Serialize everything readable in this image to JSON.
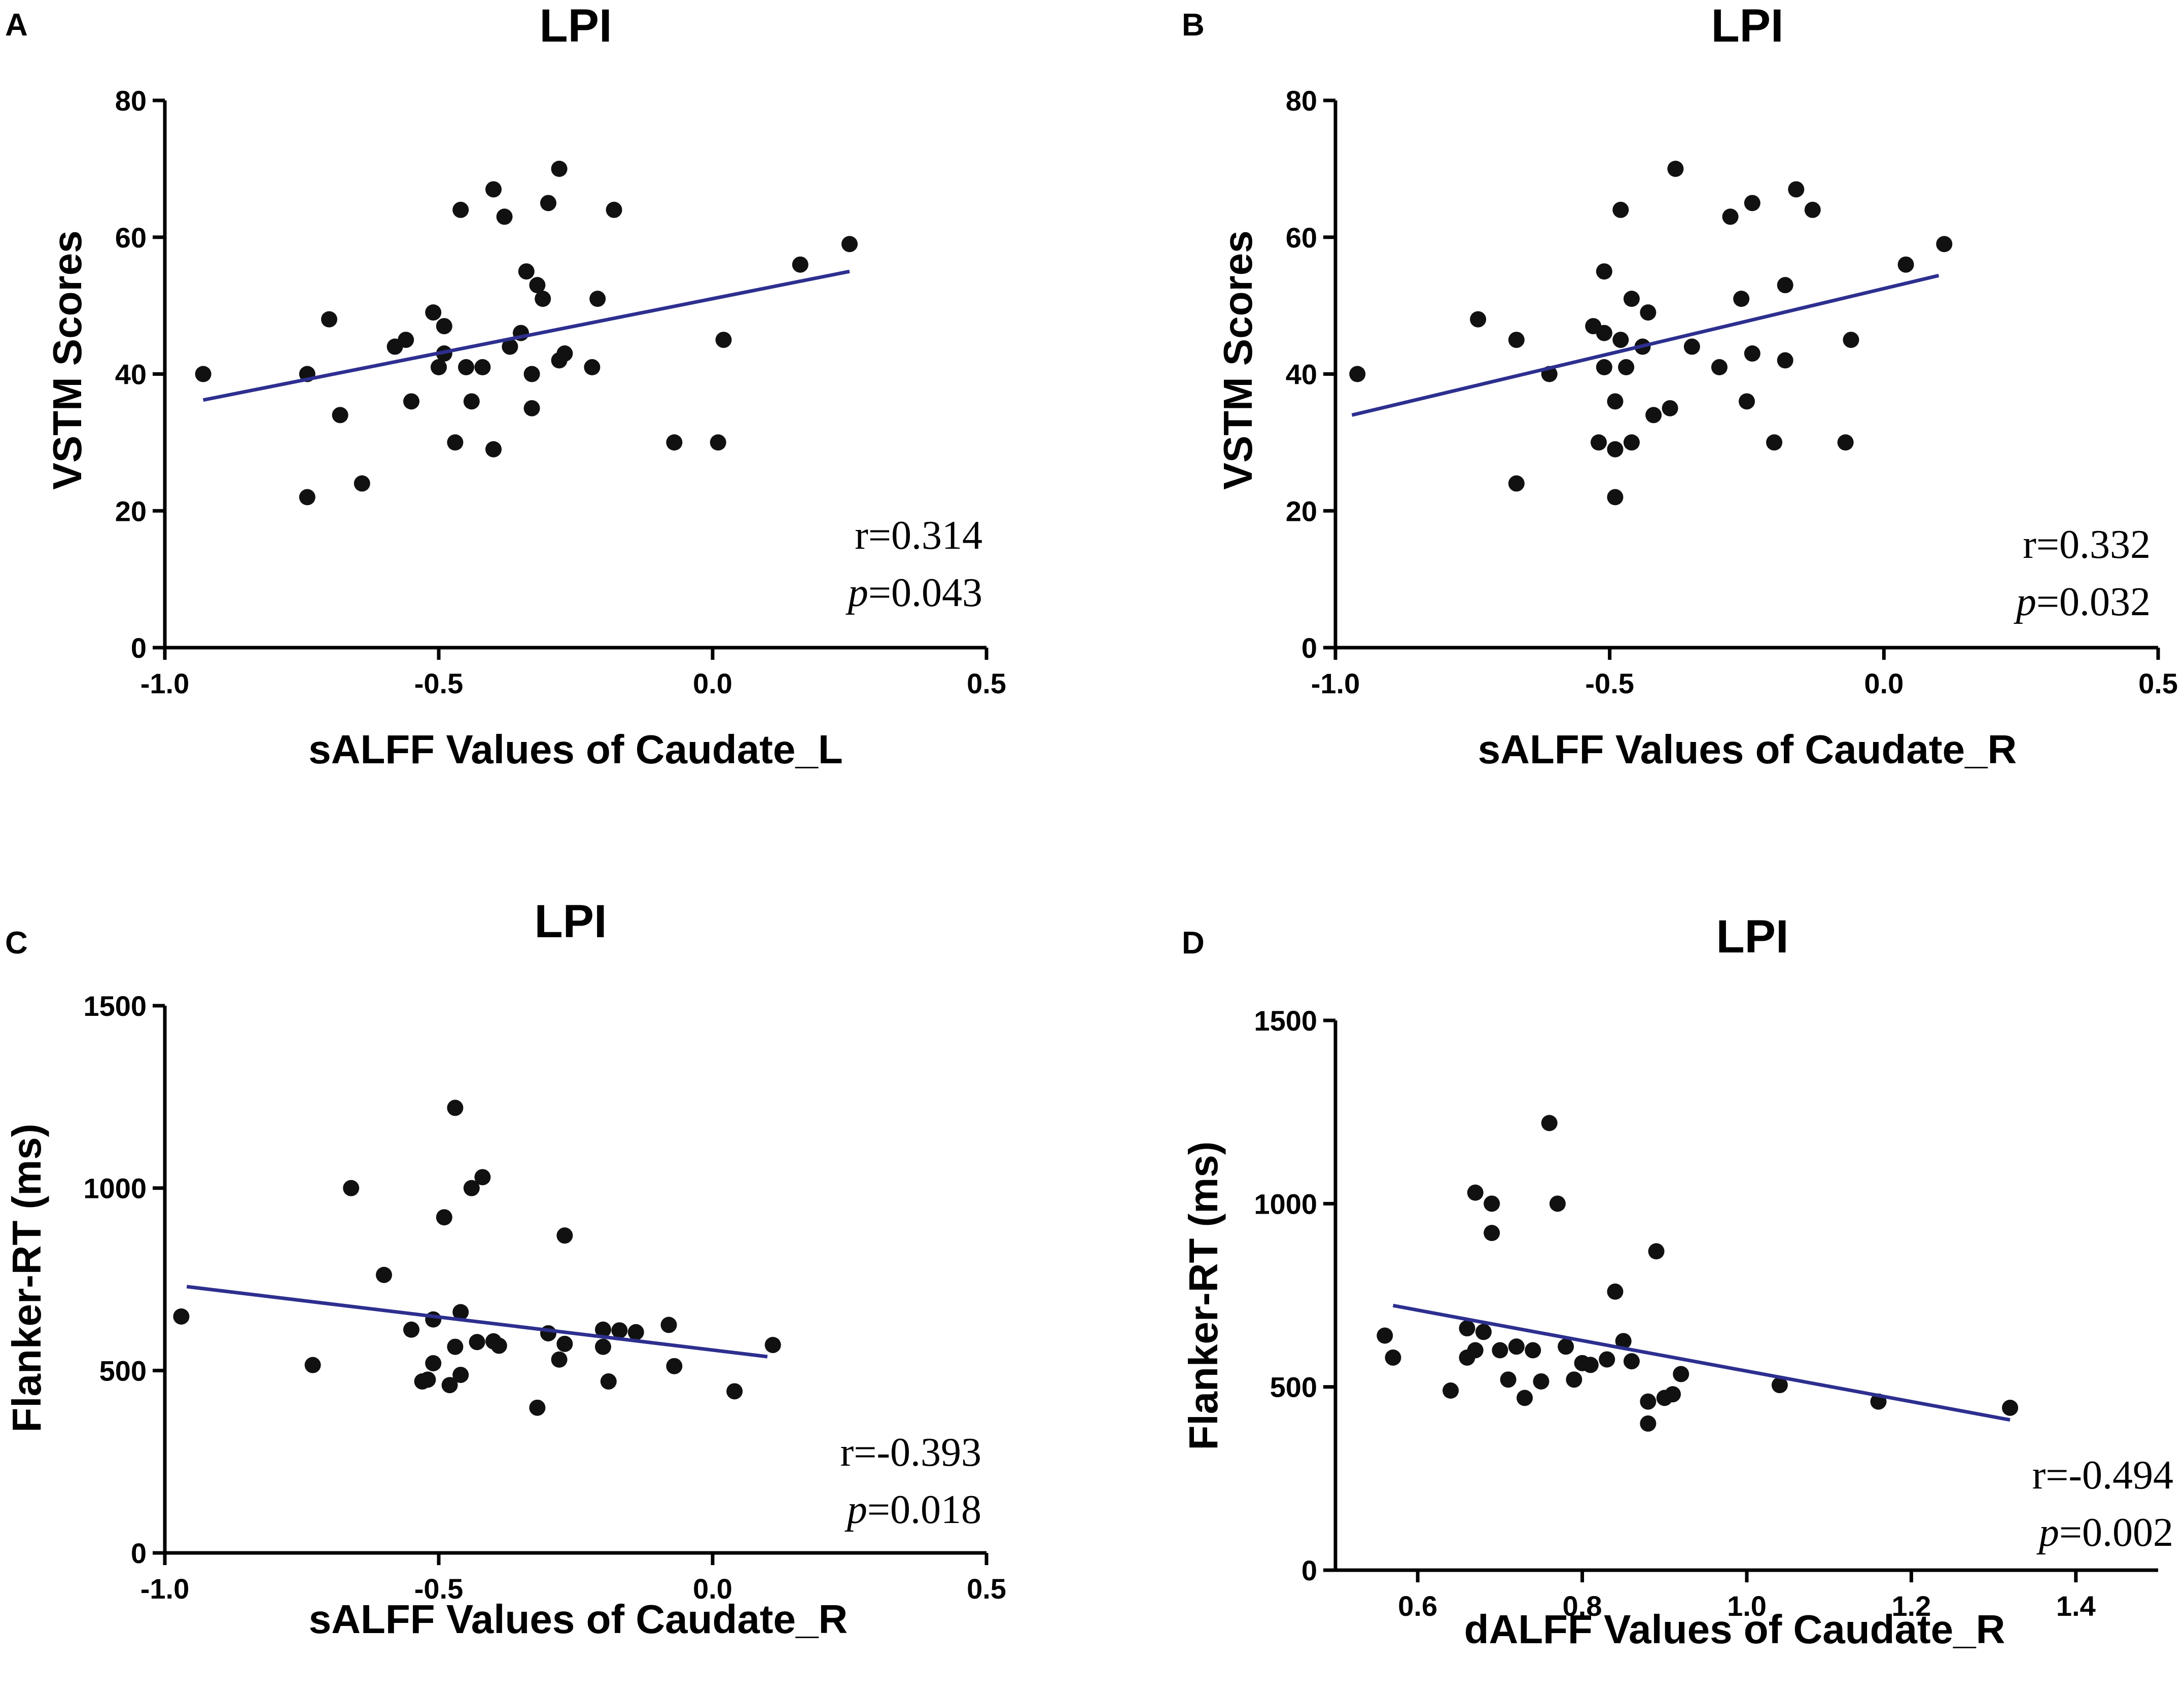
{
  "chart_data": [
    {
      "panel_label": "A",
      "type": "scatter",
      "title": "LPI",
      "xlabel": "sALFF Values of Caudate_L",
      "ylabel": "VSTM Scores",
      "xlim": [
        -1.0,
        0.5
      ],
      "ylim": [
        0,
        80
      ],
      "xticks": [
        -1.0,
        -0.5,
        0.0,
        0.5
      ],
      "xtick_labels": [
        "-1.0",
        "-0.5",
        "0.0",
        "0.5"
      ],
      "yticks": [
        0,
        20,
        40,
        60,
        80
      ],
      "ytick_labels": [
        "0",
        "20",
        "40",
        "60",
        "80"
      ],
      "fit_line": {
        "x": [
          -0.93,
          0.25
        ],
        "y": [
          36.2,
          55.0
        ]
      },
      "stats": {
        "r_text": "r=0.314",
        "p_symbol": "p",
        "p_value_text": "=0.043"
      },
      "points": [
        {
          "x": -0.93,
          "y": 40
        },
        {
          "x": -0.74,
          "y": 22
        },
        {
          "x": -0.74,
          "y": 40
        },
        {
          "x": -0.7,
          "y": 48
        },
        {
          "x": -0.68,
          "y": 34
        },
        {
          "x": -0.64,
          "y": 24
        },
        {
          "x": -0.58,
          "y": 44
        },
        {
          "x": -0.56,
          "y": 45
        },
        {
          "x": -0.55,
          "y": 36
        },
        {
          "x": -0.51,
          "y": 49
        },
        {
          "x": -0.5,
          "y": 41
        },
        {
          "x": -0.49,
          "y": 47
        },
        {
          "x": -0.49,
          "y": 43
        },
        {
          "x": -0.47,
          "y": 30
        },
        {
          "x": -0.46,
          "y": 64
        },
        {
          "x": -0.45,
          "y": 41
        },
        {
          "x": -0.44,
          "y": 36
        },
        {
          "x": -0.42,
          "y": 41
        },
        {
          "x": -0.4,
          "y": 67
        },
        {
          "x": -0.4,
          "y": 29
        },
        {
          "x": -0.38,
          "y": 63
        },
        {
          "x": -0.37,
          "y": 44
        },
        {
          "x": -0.35,
          "y": 46
        },
        {
          "x": -0.34,
          "y": 55
        },
        {
          "x": -0.33,
          "y": 40
        },
        {
          "x": -0.33,
          "y": 35
        },
        {
          "x": -0.32,
          "y": 53
        },
        {
          "x": -0.31,
          "y": 51
        },
        {
          "x": -0.3,
          "y": 65
        },
        {
          "x": -0.28,
          "y": 70
        },
        {
          "x": -0.28,
          "y": 42
        },
        {
          "x": -0.27,
          "y": 43
        },
        {
          "x": -0.22,
          "y": 41
        },
        {
          "x": -0.21,
          "y": 51
        },
        {
          "x": -0.18,
          "y": 64
        },
        {
          "x": -0.07,
          "y": 30
        },
        {
          "x": 0.01,
          "y": 30
        },
        {
          "x": 0.02,
          "y": 45
        },
        {
          "x": 0.16,
          "y": 56
        },
        {
          "x": 0.25,
          "y": 59
        }
      ]
    },
    {
      "panel_label": "B",
      "type": "scatter",
      "title": "LPI",
      "xlabel": "sALFF Values of Caudate_R",
      "ylabel": "VSTM Scores",
      "xlim": [
        -1.0,
        0.5
      ],
      "ylim": [
        0,
        80
      ],
      "xticks": [
        -1.0,
        -0.5,
        0.0,
        0.5
      ],
      "xtick_labels": [
        "-1.0",
        "-0.5",
        "0.0",
        "0.5"
      ],
      "yticks": [
        0,
        20,
        40,
        60,
        80
      ],
      "ytick_labels": [
        "0",
        "20",
        "40",
        "60",
        "80"
      ],
      "fit_line": {
        "x": [
          -0.97,
          0.1
        ],
        "y": [
          34.0,
          54.4
        ]
      },
      "stats": {
        "r_text": "r=0.332",
        "p_symbol": "p",
        "p_value_text": "=0.032"
      },
      "points": [
        {
          "x": -0.96,
          "y": 40
        },
        {
          "x": -0.74,
          "y": 48
        },
        {
          "x": -0.67,
          "y": 45
        },
        {
          "x": -0.67,
          "y": 24
        },
        {
          "x": -0.61,
          "y": 40
        },
        {
          "x": -0.53,
          "y": 47
        },
        {
          "x": -0.52,
          "y": 30
        },
        {
          "x": -0.51,
          "y": 55
        },
        {
          "x": -0.51,
          "y": 46
        },
        {
          "x": -0.51,
          "y": 41
        },
        {
          "x": -0.49,
          "y": 22
        },
        {
          "x": -0.49,
          "y": 29
        },
        {
          "x": -0.49,
          "y": 36
        },
        {
          "x": -0.48,
          "y": 64
        },
        {
          "x": -0.48,
          "y": 45
        },
        {
          "x": -0.47,
          "y": 41
        },
        {
          "x": -0.46,
          "y": 51
        },
        {
          "x": -0.46,
          "y": 30
        },
        {
          "x": -0.44,
          "y": 44
        },
        {
          "x": -0.43,
          "y": 49
        },
        {
          "x": -0.42,
          "y": 34
        },
        {
          "x": -0.39,
          "y": 35
        },
        {
          "x": -0.38,
          "y": 70
        },
        {
          "x": -0.35,
          "y": 44
        },
        {
          "x": -0.3,
          "y": 41
        },
        {
          "x": -0.28,
          "y": 63
        },
        {
          "x": -0.26,
          "y": 51
        },
        {
          "x": -0.25,
          "y": 36
        },
        {
          "x": -0.24,
          "y": 65
        },
        {
          "x": -0.24,
          "y": 43
        },
        {
          "x": -0.2,
          "y": 30
        },
        {
          "x": -0.18,
          "y": 53
        },
        {
          "x": -0.18,
          "y": 42
        },
        {
          "x": -0.16,
          "y": 67
        },
        {
          "x": -0.13,
          "y": 64
        },
        {
          "x": -0.07,
          "y": 30
        },
        {
          "x": -0.06,
          "y": 45
        },
        {
          "x": 0.04,
          "y": 56
        },
        {
          "x": 0.11,
          "y": 59
        }
      ]
    },
    {
      "panel_label": "C",
      "type": "scatter",
      "title": "LPI",
      "xlabel": "sALFF Values of Caudate_R",
      "ylabel": "Flanker-RT (ms)",
      "xlim": [
        -1.0,
        0.5
      ],
      "ylim": [
        0,
        1500
      ],
      "xticks": [
        -1.0,
        -0.5,
        0.0,
        0.5
      ],
      "xtick_labels": [
        "-1.0",
        "-0.5",
        "0.0",
        "0.5"
      ],
      "yticks": [
        0,
        500,
        1000,
        1500
      ],
      "ytick_labels": [
        "0",
        "500",
        "1000",
        "1500"
      ],
      "fit_line": {
        "x": [
          -0.96,
          0.1
        ],
        "y": [
          730,
          538
        ]
      },
      "stats": {
        "r_text": "r=-0.393",
        "p_symbol": "p",
        "p_value_text": "=0.018"
      },
      "points": [
        {
          "x": -0.97,
          "y": 648
        },
        {
          "x": -0.73,
          "y": 515
        },
        {
          "x": -0.66,
          "y": 1000
        },
        {
          "x": -0.6,
          "y": 762
        },
        {
          "x": -0.55,
          "y": 612
        },
        {
          "x": -0.53,
          "y": 470
        },
        {
          "x": -0.52,
          "y": 475
        },
        {
          "x": -0.51,
          "y": 520
        },
        {
          "x": -0.51,
          "y": 640
        },
        {
          "x": -0.49,
          "y": 920
        },
        {
          "x": -0.48,
          "y": 460
        },
        {
          "x": -0.47,
          "y": 1220
        },
        {
          "x": -0.47,
          "y": 565
        },
        {
          "x": -0.46,
          "y": 488
        },
        {
          "x": -0.46,
          "y": 660
        },
        {
          "x": -0.44,
          "y": 1000
        },
        {
          "x": -0.43,
          "y": 578
        },
        {
          "x": -0.42,
          "y": 1030
        },
        {
          "x": -0.4,
          "y": 580
        },
        {
          "x": -0.39,
          "y": 568
        },
        {
          "x": -0.32,
          "y": 398
        },
        {
          "x": -0.3,
          "y": 602
        },
        {
          "x": -0.28,
          "y": 530
        },
        {
          "x": -0.27,
          "y": 573
        },
        {
          "x": -0.27,
          "y": 870
        },
        {
          "x": -0.2,
          "y": 565
        },
        {
          "x": -0.2,
          "y": 612
        },
        {
          "x": -0.19,
          "y": 470
        },
        {
          "x": -0.17,
          "y": 610
        },
        {
          "x": -0.14,
          "y": 605
        },
        {
          "x": -0.08,
          "y": 625
        },
        {
          "x": -0.07,
          "y": 512
        },
        {
          "x": 0.04,
          "y": 443
        },
        {
          "x": 0.11,
          "y": 570
        }
      ]
    },
    {
      "panel_label": "D",
      "type": "scatter",
      "title": "LPI",
      "xlabel": "dALFF Values of Caudate_R",
      "ylabel": "Flanker-RT (ms)",
      "xlim": [
        0.5,
        1.5
      ],
      "ylim": [
        0,
        1500
      ],
      "xticks": [
        0.6,
        0.8,
        1.0,
        1.2,
        1.4
      ],
      "xtick_labels": [
        "0.6",
        "0.8",
        "1.0",
        "1.2",
        "1.4"
      ],
      "yticks": [
        0,
        500,
        1000,
        1500
      ],
      "ytick_labels": [
        "0",
        "500",
        "1000",
        "1500"
      ],
      "fit_line": {
        "x": [
          0.57,
          1.32
        ],
        "y": [
          722,
          410
        ]
      },
      "stats": {
        "r_text": "r=-0.494",
        "p_symbol": "p",
        "p_value_text": "=0.002"
      },
      "points": [
        {
          "x": 0.56,
          "y": 640
        },
        {
          "x": 0.57,
          "y": 580
        },
        {
          "x": 0.64,
          "y": 490
        },
        {
          "x": 0.66,
          "y": 660
        },
        {
          "x": 0.66,
          "y": 580
        },
        {
          "x": 0.67,
          "y": 1030
        },
        {
          "x": 0.67,
          "y": 600
        },
        {
          "x": 0.68,
          "y": 650
        },
        {
          "x": 0.69,
          "y": 1000
        },
        {
          "x": 0.69,
          "y": 920
        },
        {
          "x": 0.7,
          "y": 600
        },
        {
          "x": 0.71,
          "y": 520
        },
        {
          "x": 0.72,
          "y": 610
        },
        {
          "x": 0.73,
          "y": 470
        },
        {
          "x": 0.74,
          "y": 600
        },
        {
          "x": 0.75,
          "y": 515
        },
        {
          "x": 0.76,
          "y": 1220
        },
        {
          "x": 0.77,
          "y": 1000
        },
        {
          "x": 0.78,
          "y": 610
        },
        {
          "x": 0.79,
          "y": 520
        },
        {
          "x": 0.8,
          "y": 565
        },
        {
          "x": 0.81,
          "y": 560
        },
        {
          "x": 0.83,
          "y": 575
        },
        {
          "x": 0.84,
          "y": 760
        },
        {
          "x": 0.85,
          "y": 625
        },
        {
          "x": 0.86,
          "y": 570
        },
        {
          "x": 0.88,
          "y": 460
        },
        {
          "x": 0.88,
          "y": 400
        },
        {
          "x": 0.89,
          "y": 870
        },
        {
          "x": 0.9,
          "y": 470
        },
        {
          "x": 0.91,
          "y": 480
        },
        {
          "x": 0.92,
          "y": 535
        },
        {
          "x": 1.04,
          "y": 505
        },
        {
          "x": 1.16,
          "y": 460
        },
        {
          "x": 1.32,
          "y": 443
        }
      ]
    }
  ]
}
